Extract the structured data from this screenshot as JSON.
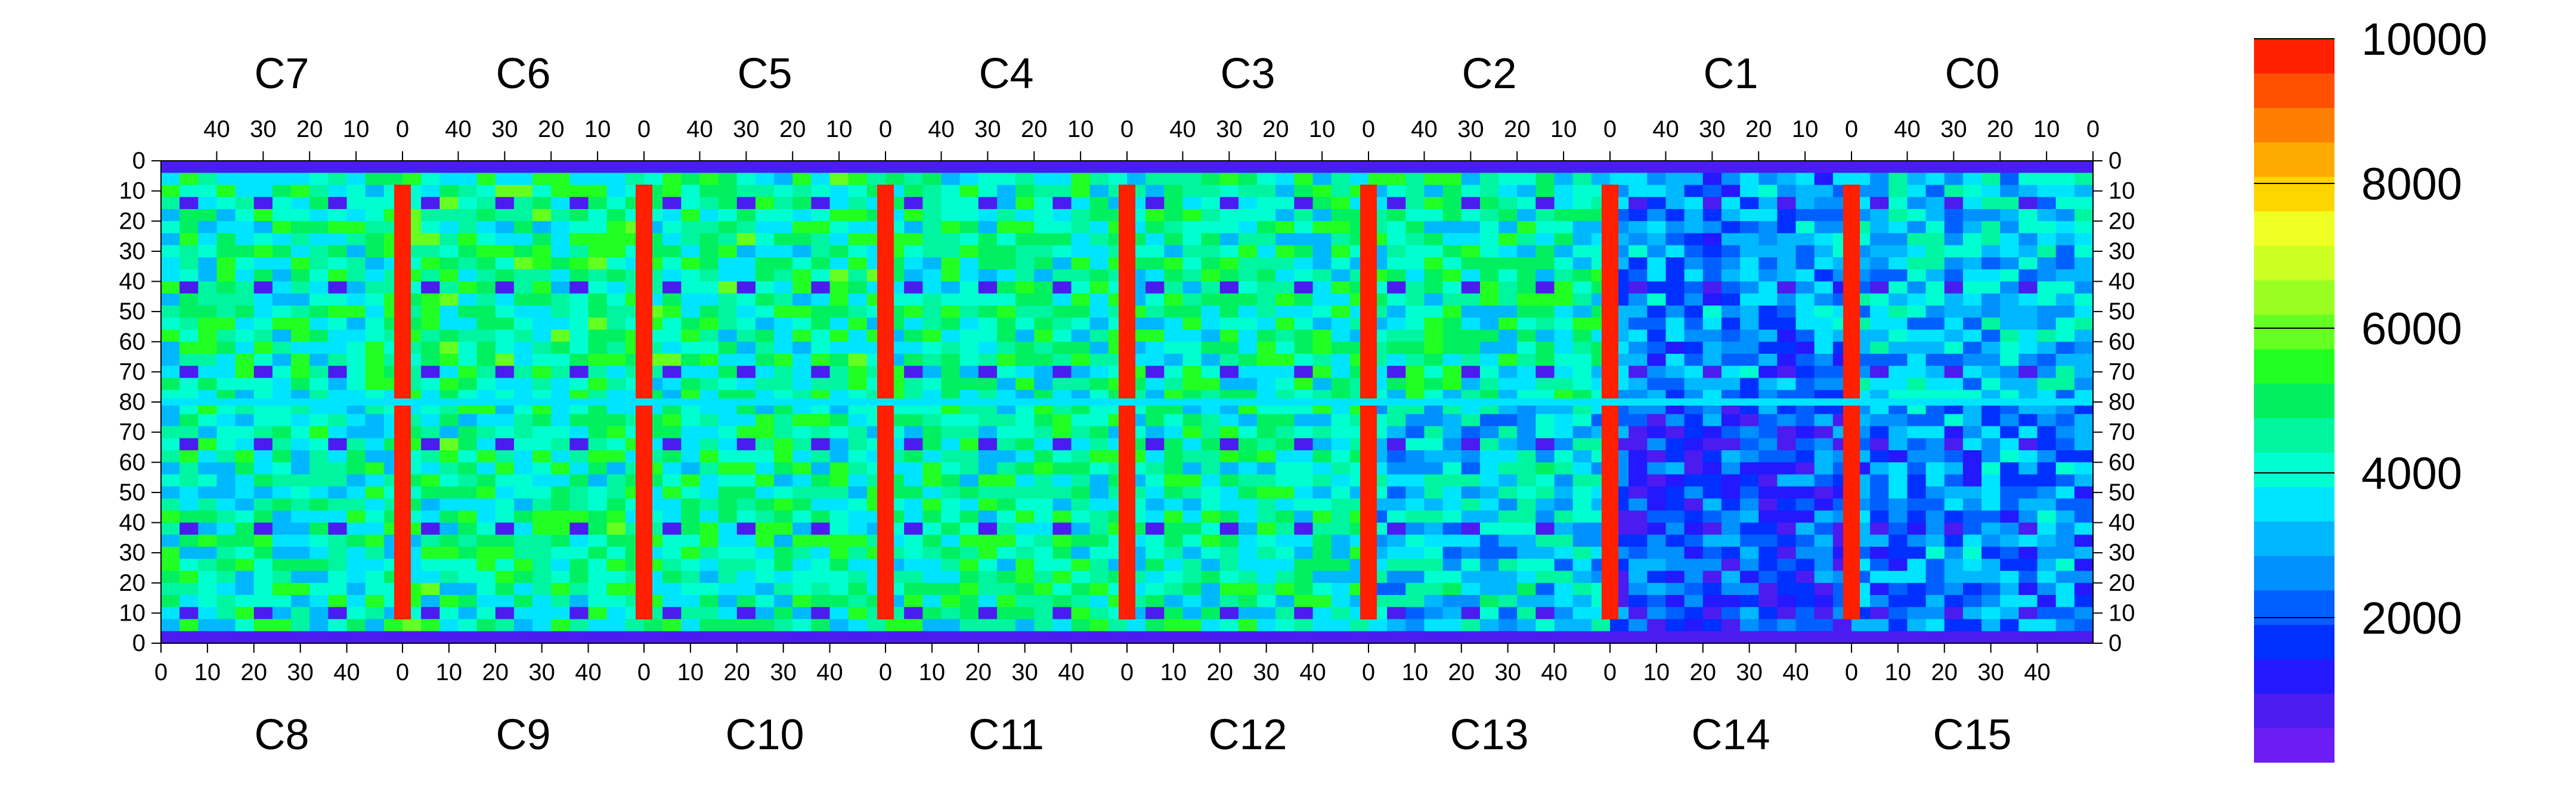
{
  "chart_data": {
    "type": "heatmap",
    "title": "",
    "xlabel": "",
    "ylabel": "",
    "grid": false,
    "chips_top": [
      "C7",
      "C6",
      "C5",
      "C4",
      "C3",
      "C2",
      "C1",
      "C0"
    ],
    "chips_bottom": [
      "C8",
      "C9",
      "C10",
      "C11",
      "C12",
      "C13",
      "C14",
      "C15"
    ],
    "chip_columns": 52,
    "chip_rows": 80,
    "top_axis_ticks": [
      "0",
      "10",
      "20",
      "30",
      "40"
    ],
    "bottom_axis_ticks": [
      "0",
      "10",
      "20",
      "30",
      "40"
    ],
    "y_axis_ticks": [
      "0",
      "10",
      "20",
      "30",
      "40",
      "50",
      "60",
      "70",
      "80",
      "70",
      "60",
      "50",
      "40",
      "30",
      "20",
      "10",
      "0"
    ],
    "colorbar": {
      "range": [
        0,
        10000
      ],
      "tick_labels": [
        "2000",
        "4000",
        "6000",
        "8000",
        "10000"
      ],
      "tick_values": [
        2000,
        4000,
        6000,
        8000,
        10000
      ],
      "colors": [
        "#6c1cf4",
        "#4b1cf0",
        "#2418ff",
        "#0030ff",
        "#0060ff",
        "#0090ff",
        "#00b8ff",
        "#00e5ff",
        "#00ffd0",
        "#00f5a0",
        "#00f060",
        "#22ff22",
        "#66ff22",
        "#99ff22",
        "#ccff22",
        "#f0ff22",
        "#ffd500",
        "#ffaa00",
        "#ff7f00",
        "#ff5000",
        "#ff2000"
      ]
    },
    "regions": [
      {
        "name": "C7",
        "mean": 4300
      },
      {
        "name": "C6",
        "mean": 4600
      },
      {
        "name": "C5",
        "mean": 4500
      },
      {
        "name": "C4",
        "mean": 4400
      },
      {
        "name": "C3",
        "mean": 4300
      },
      {
        "name": "C2",
        "mean": 4200
      },
      {
        "name": "C1",
        "mean": 2600
      },
      {
        "name": "C0",
        "mean": 3400
      },
      {
        "name": "C8",
        "mean": 4200
      },
      {
        "name": "C9",
        "mean": 4500
      },
      {
        "name": "C10",
        "mean": 4400
      },
      {
        "name": "C11",
        "mean": 4300
      },
      {
        "name": "C12",
        "mean": 4200
      },
      {
        "name": "C13",
        "mean": 3500
      },
      {
        "name": "C14",
        "mean": 1800
      },
      {
        "name": "C15",
        "mean": 2600
      }
    ]
  }
}
